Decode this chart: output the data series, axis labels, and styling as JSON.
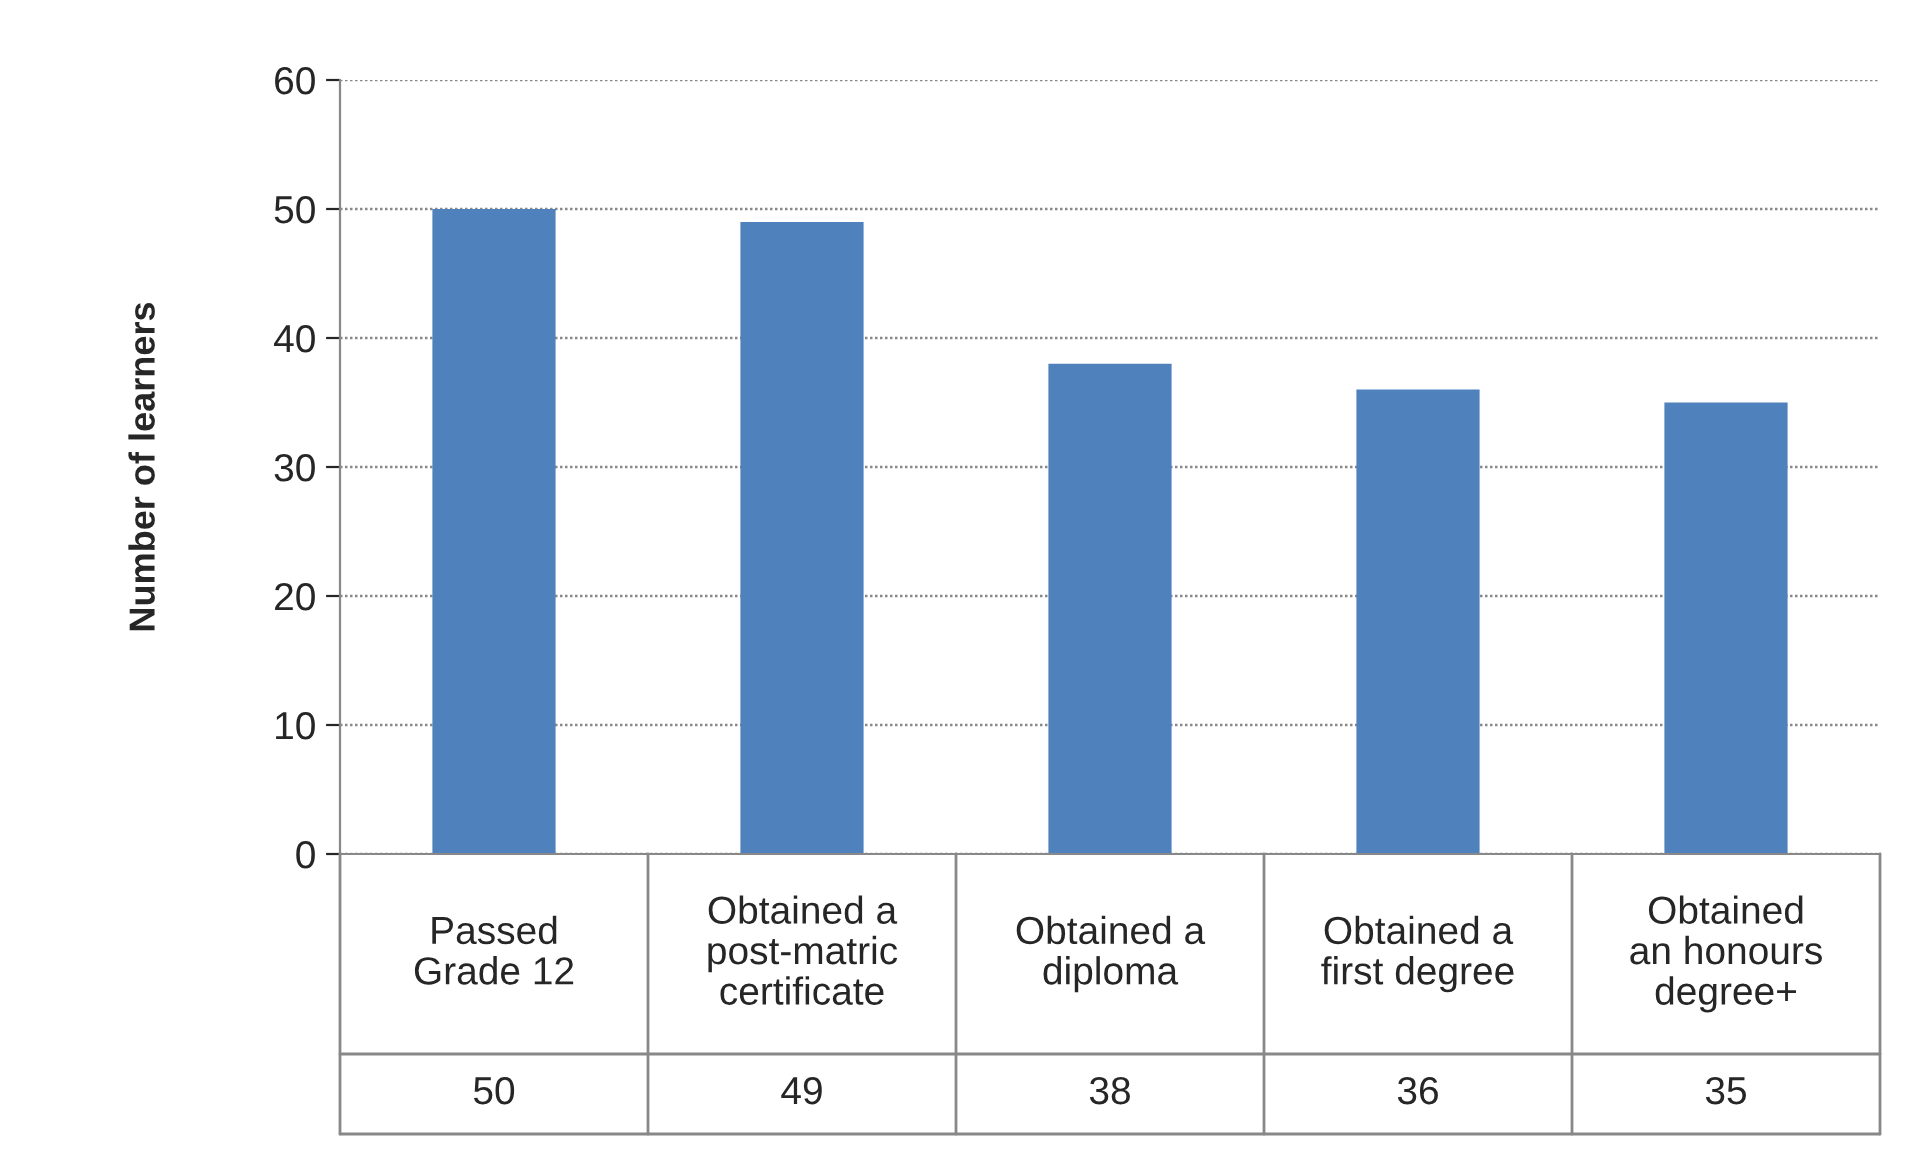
{
  "chart_data": {
    "type": "bar",
    "ylabel": "Number of learners",
    "categories": [
      "Passed\nGrade 12",
      "Obtained a\npost-matric\ncertificate",
      "Obtained a\ndiploma",
      "Obtained a\nfirst degree",
      "Obtained\nan honours\ndegree+"
    ],
    "values": [
      50,
      49,
      38,
      36,
      35
    ],
    "color": "#4f81bd",
    "ylim": [
      0,
      60
    ],
    "yticks": [
      0,
      10,
      20,
      30,
      40,
      50,
      60
    ],
    "grid": "y",
    "data_labels": true
  }
}
